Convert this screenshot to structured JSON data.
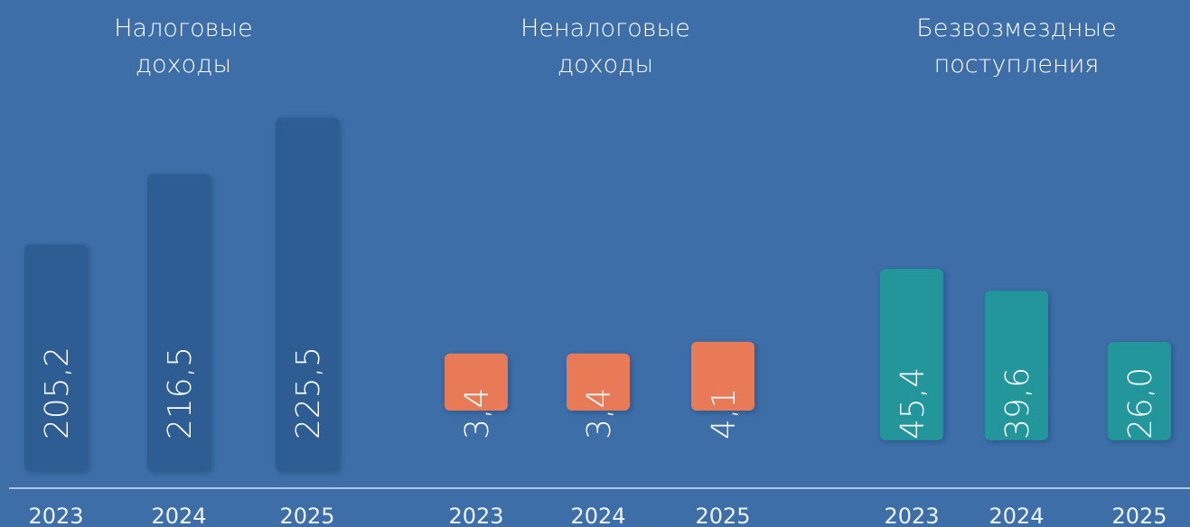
{
  "chart_data": [
    {
      "type": "bar",
      "title": [
        "Налоговые",
        "доходы"
      ],
      "categories": [
        "2023",
        "2024",
        "2025"
      ],
      "values": [
        205.2,
        216.5,
        225.5
      ],
      "value_labels": [
        "205,2",
        "216,5",
        "225,5"
      ],
      "color": "#2f5d93",
      "ylim": [
        169,
        227
      ],
      "centers": null
    },
    {
      "type": "bar",
      "title": [
        "Неналоговые",
        "доходы"
      ],
      "categories": [
        "2023",
        "2024",
        "2025"
      ],
      "values": [
        3.4,
        3.4,
        4.1
      ],
      "value_labels": [
        "3,4",
        "3,4",
        "4,1"
      ],
      "color": "#e97a58",
      "ylim": [
        -3.6,
        18
      ]
    },
    {
      "type": "bar",
      "title": [
        "Безвозмездные",
        "поступления"
      ],
      "categories": [
        "2023",
        "2024",
        "2025"
      ],
      "values": [
        45.4,
        39.6,
        26.0
      ],
      "value_labels": [
        "45,4",
        "39,6",
        "26,0"
      ],
      "color": "#23969a",
      "ylim": [
        -8.2,
        88
      ]
    }
  ]
}
